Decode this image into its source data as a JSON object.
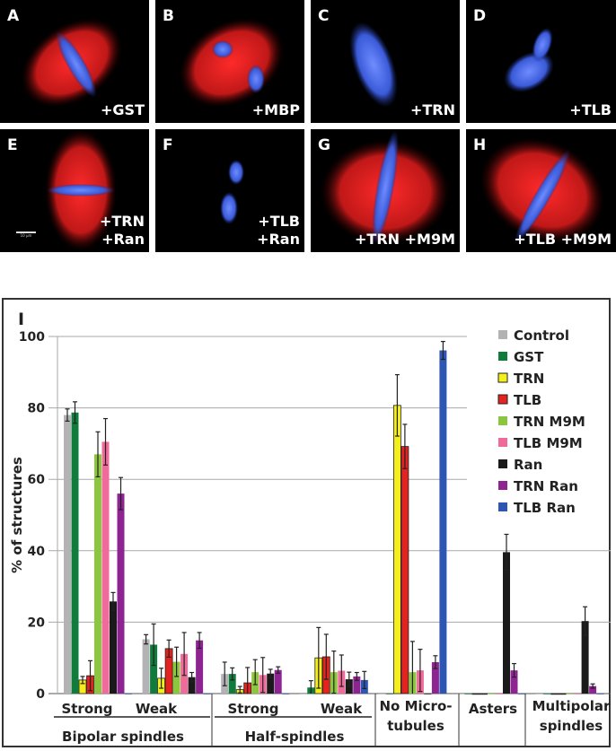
{
  "panels": [
    {
      "letter": "A",
      "label": [
        "+GST"
      ],
      "kind": "spindle"
    },
    {
      "letter": "B",
      "label": [
        "+MBP"
      ],
      "kind": "spindle2"
    },
    {
      "letter": "C",
      "label": [
        "+TRN"
      ],
      "kind": "chromatin"
    },
    {
      "letter": "D",
      "label": [
        "+TLB"
      ],
      "kind": "chromatin2"
    },
    {
      "letter": "E",
      "label": [
        "+TRN",
        "+Ran"
      ],
      "kind": "bipolar"
    },
    {
      "letter": "F",
      "label": [
        "+TLB",
        "+Ran"
      ],
      "kind": "chromatin3"
    },
    {
      "letter": "G",
      "label": [
        "+TRN +M9M"
      ],
      "kind": "spindle3"
    },
    {
      "letter": "H",
      "label": [
        "+TLB +M9M"
      ],
      "kind": "spindle4"
    }
  ],
  "scale_bar": "10 µm",
  "chart_data": {
    "type": "bar",
    "panel_letter": "I",
    "ylabel": "% of structures",
    "ylim": [
      0,
      100
    ],
    "yticks": [
      0,
      20,
      40,
      60,
      80,
      100
    ],
    "grid": true,
    "legend_position": "top-right",
    "categories": [
      {
        "label": [
          "Strong"
        ],
        "group": "Bipolar spindles"
      },
      {
        "label": [
          "Weak"
        ],
        "group": "Bipolar spindles"
      },
      {
        "label": [
          "Strong"
        ],
        "group": "Half-spindles"
      },
      {
        "label": [
          "Weak"
        ],
        "group": "Half-spindles"
      },
      {
        "label": [
          "No Micro-",
          "tubules"
        ],
        "group": ""
      },
      {
        "label": [
          "Asters"
        ],
        "group": ""
      },
      {
        "label": [
          "Multipolar",
          "spindles"
        ],
        "group": ""
      }
    ],
    "groups": [
      "Bipolar spindles",
      "Half-spindles"
    ],
    "series": [
      {
        "name": "Control",
        "color": "#b3b3b6",
        "values": [
          78.0,
          15.2,
          5.5,
          0,
          0,
          0,
          0
        ],
        "errors": [
          1.7,
          1.3,
          3.3,
          0,
          0,
          0,
          0
        ]
      },
      {
        "name": "GST",
        "color": "#0f7c3c",
        "values": [
          78.7,
          13.7,
          5.5,
          1.7,
          0,
          0,
          0
        ],
        "errors": [
          3.0,
          5.8,
          1.7,
          1.9,
          0,
          0,
          0
        ]
      },
      {
        "name": "TRN",
        "color": "#f4ee1c",
        "values": [
          3.8,
          4.3,
          1.1,
          10.0,
          80.7,
          0,
          0
        ],
        "errors": [
          1.0,
          2.8,
          0.9,
          8.5,
          8.6,
          0,
          0
        ]
      },
      {
        "name": "TLB",
        "color": "#e2231f",
        "values": [
          5.0,
          12.6,
          3.0,
          10.3,
          69.2,
          0,
          0
        ],
        "errors": [
          4.2,
          2.4,
          4.3,
          6.3,
          6.2,
          0,
          0
        ]
      },
      {
        "name": "TRN M9M",
        "color": "#8cc63f",
        "values": [
          67.0,
          8.9,
          6.0,
          6.0,
          6.0,
          0,
          0
        ],
        "errors": [
          6.3,
          4.1,
          3.5,
          5.9,
          8.6,
          0,
          0
        ]
      },
      {
        "name": "TLB M9M",
        "color": "#f06a9b",
        "values": [
          70.5,
          11.1,
          5.2,
          6.4,
          6.5,
          0,
          0
        ],
        "errors": [
          6.5,
          6.0,
          4.9,
          4.4,
          5.9,
          0,
          0
        ]
      },
      {
        "name": "Ran",
        "color": "#1a1a1a",
        "values": [
          25.8,
          4.6,
          5.6,
          4.0,
          0,
          39.6,
          20.3
        ],
        "errors": [
          2.5,
          1.3,
          1.2,
          2.0,
          0,
          5.0,
          4.0
        ]
      },
      {
        "name": "TRN Ran",
        "color": "#8e2491",
        "values": [
          56.0,
          14.9,
          6.6,
          4.8,
          8.8,
          6.5,
          2.1
        ],
        "errors": [
          4.5,
          2.2,
          0.9,
          1.1,
          1.8,
          1.9,
          0.6
        ]
      },
      {
        "name": "TLB Ran",
        "color": "#2e55b4",
        "values": [
          0,
          0,
          0,
          3.8,
          96.1,
          0,
          0
        ],
        "errors": [
          0,
          0,
          0,
          2.4,
          2.5,
          0,
          0
        ]
      }
    ]
  }
}
